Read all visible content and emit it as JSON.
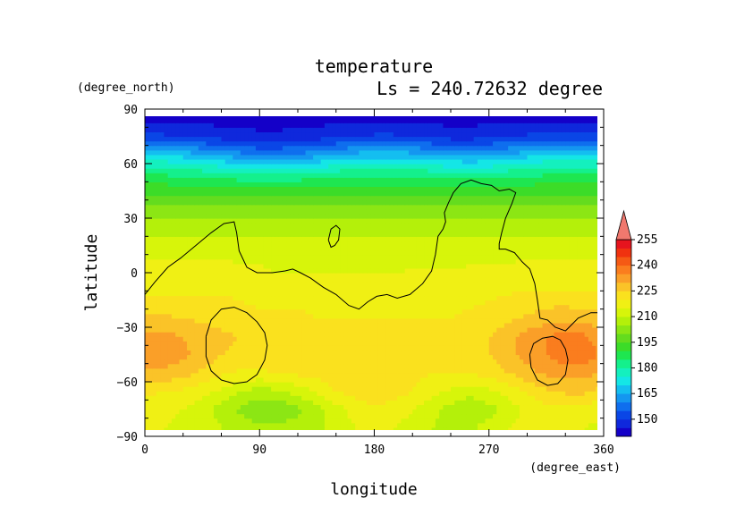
{
  "chart_data": {
    "type": "heatmap",
    "title": "temperature",
    "subtitle": "Ls = 240.72632 degree",
    "xlabel": "longitude",
    "ylabel": "latitude",
    "xunit": "(degree_east)",
    "yunit": "(degree_north)",
    "xlim": [
      0,
      360
    ],
    "ylim": [
      -90,
      90
    ],
    "x_ticks": [
      0,
      90,
      180,
      270,
      360
    ],
    "y_ticks": [
      90,
      60,
      30,
      0,
      -30,
      -60,
      -90
    ],
    "colorbar": {
      "levels": [
        140,
        145,
        150,
        155,
        160,
        165,
        170,
        175,
        180,
        185,
        190,
        195,
        200,
        205,
        210,
        215,
        220,
        225,
        230,
        235,
        240,
        245,
        250,
        255,
        260
      ],
      "tick_labels": [
        150,
        165,
        180,
        195,
        210,
        225,
        240,
        255
      ],
      "colors": [
        "#1400c8",
        "#0f28dc",
        "#0a46e6",
        "#0f6eee",
        "#1496f0",
        "#14bef0",
        "#14e6e6",
        "#14f0be",
        "#14f08c",
        "#1ee650",
        "#3cdc28",
        "#64dc1e",
        "#8ce614",
        "#b4f00a",
        "#d7f50a",
        "#f0f014",
        "#fae11e",
        "#fac328",
        "#fa9f28",
        "#fa7d1e",
        "#f55a14",
        "#f0320f",
        "#e6141e",
        "#f0786e"
      ]
    },
    "series": [
      {
        "lat": -85,
        "values": [
          215,
          215,
          214,
          213,
          210,
          208,
          206,
          206,
          207,
          209,
          212,
          215,
          216,
          215,
          213,
          210,
          208,
          209,
          212,
          215,
          217,
          217,
          216,
          215,
          214,
          214
        ]
      },
      {
        "lat": -75,
        "values": [
          217,
          216,
          215,
          212,
          208,
          204,
          201,
          201,
          204,
          208,
          213,
          217,
          219,
          218,
          215,
          212,
          208,
          206,
          208,
          212,
          216,
          218,
          219,
          218,
          217,
          217
        ]
      },
      {
        "lat": -65,
        "values": [
          221,
          220,
          219,
          217,
          214,
          210,
          208,
          209,
          212,
          216,
          220,
          222,
          223,
          222,
          220,
          217,
          214,
          212,
          214,
          217,
          221,
          224,
          226,
          226,
          224,
          222
        ]
      },
      {
        "lat": -55,
        "values": [
          229,
          229,
          227,
          224,
          221,
          219,
          219,
          220,
          221,
          222,
          223,
          223,
          222,
          222,
          221,
          220,
          220,
          220,
          222,
          225,
          228,
          231,
          232,
          232,
          230,
          229
        ]
      },
      {
        "lat": -45,
        "values": [
          232,
          233,
          231,
          228,
          225,
          224,
          224,
          225,
          225,
          224,
          223,
          222,
          222,
          222,
          222,
          222,
          222,
          223,
          225,
          228,
          232,
          235,
          238,
          238,
          235,
          232
        ]
      },
      {
        "lat": -35,
        "values": [
          231,
          232,
          230,
          228,
          226,
          225,
          225,
          225,
          224,
          223,
          222,
          222,
          222,
          222,
          222,
          222,
          222,
          223,
          225,
          228,
          232,
          235,
          237,
          236,
          233,
          231
        ]
      },
      {
        "lat": -25,
        "values": [
          226,
          226,
          225,
          224,
          223,
          222,
          221,
          221,
          221,
          220,
          220,
          220,
          220,
          220,
          220,
          220,
          220,
          221,
          222,
          224,
          226,
          228,
          229,
          228,
          227,
          226
        ]
      },
      {
        "lat": -15,
        "values": [
          221,
          221,
          221,
          221,
          221,
          220,
          219,
          219,
          219,
          219,
          219,
          219,
          219,
          219,
          219,
          219,
          219,
          219,
          220,
          221,
          222,
          223,
          223,
          222,
          222,
          221
        ]
      },
      {
        "lat": -5,
        "values": [
          218,
          218,
          218,
          218,
          218,
          217,
          216,
          216,
          216,
          216,
          216,
          216,
          216,
          216,
          217,
          217,
          217,
          217,
          217,
          218,
          218,
          218,
          218,
          218,
          218,
          218
        ]
      },
      {
        "lat": 5,
        "values": [
          216,
          216,
          216,
          216,
          216,
          215,
          215,
          214,
          214,
          214,
          214,
          214,
          214,
          214,
          214,
          214,
          214,
          215,
          215,
          215,
          216,
          216,
          216,
          216,
          216,
          216
        ]
      },
      {
        "lat": 15,
        "values": [
          213,
          213,
          213,
          213,
          213,
          212,
          212,
          212,
          212,
          212,
          212,
          212,
          212,
          212,
          212,
          212,
          212,
          212,
          212,
          212,
          212,
          212,
          212,
          212,
          213,
          213
        ]
      },
      {
        "lat": 25,
        "values": [
          208,
          208,
          208,
          208,
          208,
          208,
          208,
          208,
          208,
          208,
          208,
          208,
          208,
          208,
          208,
          208,
          208,
          208,
          208,
          208,
          208,
          208,
          208,
          208,
          208,
          208
        ]
      },
      {
        "lat": 35,
        "values": [
          201,
          201,
          201,
          201,
          201,
          201,
          201,
          201,
          201,
          201,
          201,
          201,
          201,
          201,
          201,
          201,
          201,
          201,
          201,
          201,
          201,
          201,
          201,
          201,
          201,
          201
        ]
      },
      {
        "lat": 45,
        "values": [
          194,
          194,
          193,
          193,
          193,
          193,
          193,
          193,
          193,
          193,
          194,
          194,
          194,
          194,
          194,
          194,
          194,
          194,
          194,
          194,
          194,
          194,
          194,
          194,
          194,
          194
        ]
      },
      {
        "lat": 55,
        "values": [
          184,
          184,
          183,
          182,
          181,
          180,
          179,
          179,
          180,
          181,
          182,
          183,
          183,
          183,
          183,
          182,
          181,
          181,
          181,
          182,
          183,
          184,
          184,
          184,
          184,
          184
        ]
      },
      {
        "lat": 65,
        "values": [
          170,
          170,
          168,
          166,
          164,
          162,
          160,
          160,
          161,
          163,
          165,
          167,
          168,
          168,
          167,
          165,
          164,
          163,
          164,
          166,
          168,
          170,
          170,
          170,
          170,
          170
        ]
      },
      {
        "lat": 75,
        "values": [
          152,
          151,
          150,
          149,
          148,
          147,
          146,
          146,
          147,
          148,
          149,
          150,
          151,
          151,
          150,
          149,
          148,
          148,
          149,
          150,
          151,
          152,
          152,
          152,
          152,
          152
        ]
      },
      {
        "lat": 85,
        "values": [
          143,
          143,
          143,
          143,
          143,
          143,
          143,
          143,
          143,
          143,
          143,
          143,
          143,
          143,
          143,
          143,
          143,
          143,
          143,
          143,
          143,
          143,
          143,
          143,
          143,
          143
        ]
      }
    ],
    "lon": [
      0,
      15,
      30,
      45,
      60,
      75,
      90,
      105,
      120,
      135,
      150,
      165,
      180,
      195,
      210,
      225,
      240,
      255,
      270,
      285,
      300,
      315,
      330,
      345,
      355,
      360
    ],
    "topography_contours": [
      {
        "name": "north-continent",
        "points": [
          [
            0,
            -12
          ],
          [
            8,
            -5
          ],
          [
            18,
            3
          ],
          [
            28,
            8
          ],
          [
            40,
            15
          ],
          [
            52,
            22
          ],
          [
            62,
            27
          ],
          [
            70,
            28
          ],
          [
            72,
            22
          ],
          [
            74,
            12
          ],
          [
            80,
            3
          ],
          [
            88,
            0
          ],
          [
            100,
            0
          ],
          [
            110,
            1
          ],
          [
            116,
            2
          ],
          [
            122,
            0
          ],
          [
            130,
            -3
          ],
          [
            140,
            -8
          ],
          [
            150,
            -12
          ],
          [
            160,
            -18
          ],
          [
            168,
            -20
          ],
          [
            175,
            -16
          ],
          [
            182,
            -13
          ],
          [
            190,
            -12
          ],
          [
            198,
            -14
          ],
          [
            208,
            -12
          ],
          [
            218,
            -6
          ],
          [
            225,
            1
          ],
          [
            228,
            10
          ],
          [
            230,
            20
          ],
          [
            234,
            24
          ],
          [
            236,
            28
          ],
          [
            235,
            33
          ],
          [
            238,
            38
          ],
          [
            242,
            44
          ],
          [
            248,
            49
          ],
          [
            256,
            51
          ],
          [
            264,
            49
          ],
          [
            272,
            48
          ],
          [
            278,
            45
          ],
          [
            286,
            46
          ],
          [
            291,
            44
          ],
          [
            288,
            38
          ],
          [
            283,
            30
          ],
          [
            280,
            22
          ],
          [
            278,
            16
          ],
          [
            278,
            13
          ],
          [
            283,
            13
          ],
          [
            290,
            11
          ],
          [
            296,
            6
          ],
          [
            302,
            2
          ],
          [
            306,
            -6
          ],
          [
            308,
            -15
          ],
          [
            310,
            -25
          ],
          [
            316,
            -26
          ],
          [
            322,
            -30
          ],
          [
            330,
            -32
          ],
          [
            340,
            -25
          ],
          [
            350,
            -22
          ],
          [
            356,
            -22
          ],
          [
            360,
            -20
          ]
        ]
      },
      {
        "name": "small-island",
        "points": [
          [
            144,
            18
          ],
          [
            146,
            24
          ],
          [
            150,
            26
          ],
          [
            153,
            24
          ],
          [
            152,
            18
          ],
          [
            149,
            15
          ],
          [
            146,
            14
          ],
          [
            144,
            18
          ]
        ]
      },
      {
        "name": "south-basin-west",
        "points": [
          [
            48,
            -35
          ],
          [
            52,
            -26
          ],
          [
            60,
            -20
          ],
          [
            70,
            -19
          ],
          [
            80,
            -22
          ],
          [
            88,
            -27
          ],
          [
            94,
            -33
          ],
          [
            96,
            -40
          ],
          [
            94,
            -48
          ],
          [
            88,
            -56
          ],
          [
            80,
            -60
          ],
          [
            70,
            -61
          ],
          [
            60,
            -59
          ],
          [
            52,
            -54
          ],
          [
            48,
            -46
          ],
          [
            48,
            -35
          ]
        ]
      },
      {
        "name": "south-basin-east",
        "points": [
          [
            302,
            -45
          ],
          [
            305,
            -39
          ],
          [
            312,
            -36
          ],
          [
            320,
            -35
          ],
          [
            326,
            -37
          ],
          [
            330,
            -42
          ],
          [
            332,
            -48
          ],
          [
            330,
            -56
          ],
          [
            324,
            -61
          ],
          [
            316,
            -62
          ],
          [
            308,
            -59
          ],
          [
            303,
            -52
          ],
          [
            302,
            -45
          ]
        ]
      }
    ]
  }
}
